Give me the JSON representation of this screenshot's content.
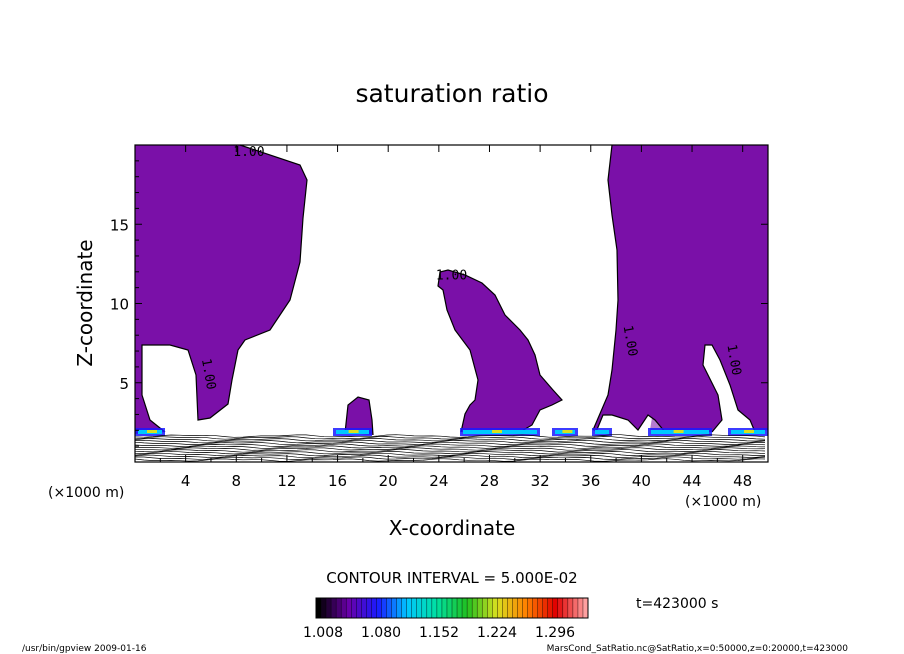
{
  "chart_data": {
    "type": "contour",
    "title": "saturation ratio",
    "xlabel": "X-coordinate",
    "ylabel": "Z-coordinate",
    "x_unit": "(×1000 m)",
    "z_unit": "(×1000 m)",
    "xlim": [
      0,
      50
    ],
    "ylim": [
      0,
      20
    ],
    "x_ticks": [
      4,
      8,
      12,
      16,
      20,
      24,
      28,
      32,
      36,
      40,
      44,
      48
    ],
    "y_ticks": [
      5,
      10,
      15
    ],
    "contour_labels": [
      {
        "text": "1.00",
        "x": 9,
        "z": 19.3
      },
      {
        "text": "1.00",
        "x": 25,
        "z": 11.5
      },
      {
        "text": "1.00",
        "x": 5.5,
        "z": 5.5
      },
      {
        "text": "1.00",
        "x": 38.8,
        "z": 7.6
      },
      {
        "text": "1.00",
        "x": 47,
        "z": 6.4
      }
    ],
    "contour_interval_label": "CONTOUR INTERVAL = 5.000E-02",
    "colorbar": {
      "labels": [
        "1.008",
        "1.080",
        "1.152",
        "1.224",
        "1.296"
      ],
      "colors": [
        "#000000",
        "#6a00a8",
        "#1a1aff",
        "#00c8ff",
        "#00e0a0",
        "#20c020",
        "#d8e020",
        "#ff8000",
        "#e00000",
        "#ffa0a0"
      ]
    },
    "time_label": "t=423000 s",
    "fill_color": "#7a10a8"
  },
  "footer": {
    "left": "/usr/bin/gpview  2009-01-16",
    "right": "MarsCond_SatRatio.nc@SatRatio,x=0:50000,z=0:20000,t=423000"
  }
}
